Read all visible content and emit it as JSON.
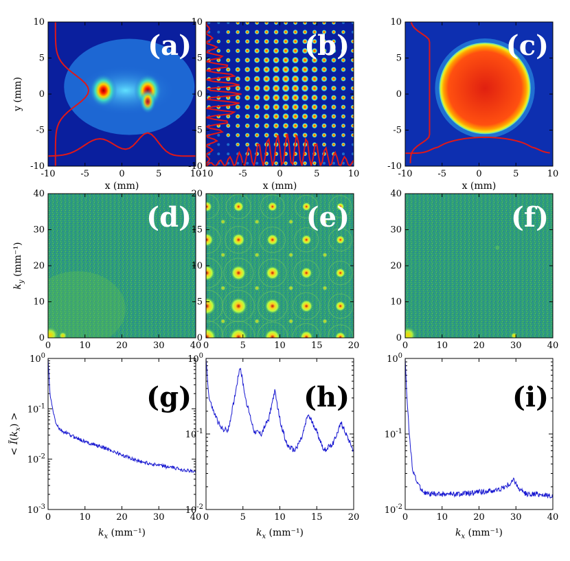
{
  "figure": {
    "colors": {
      "jet_blue": "#0a1f9e",
      "jet_field": "#1f6fd8",
      "kspace_field": "#2f9e78",
      "trace_red": "#e01818",
      "line_blue": "#1515d0"
    }
  },
  "chart_data": [
    {
      "id": "a",
      "type": "heatmap",
      "panel_label": "(a)",
      "xlabel": "x (mm)",
      "ylabel": "y (mm)",
      "xlim": [
        -10,
        10
      ],
      "ylim": [
        -10,
        10
      ],
      "xticks": [
        -10,
        -5,
        0,
        5,
        10
      ],
      "yticks": [
        -10,
        -5,
        0,
        5,
        10
      ],
      "description_spots": [
        [
          -2.5,
          0.5
        ],
        [
          3.5,
          0.5
        ]
      ],
      "overlay_profiles": [
        "vertical-left",
        "horizontal-bottom"
      ]
    },
    {
      "id": "b",
      "type": "heatmap",
      "panel_label": "(b)",
      "xlabel": "x (mm)",
      "ylabel": "",
      "xlim": [
        -10,
        10
      ],
      "ylim": [
        -10,
        10
      ],
      "xticks": [
        -10,
        -5,
        0,
        5,
        10
      ],
      "yticks": [
        -10,
        -5,
        0,
        5,
        10
      ],
      "lattice_pitch_mm": 1.3,
      "overlay_profiles": [
        "vertical-left",
        "horizontal-bottom"
      ]
    },
    {
      "id": "c",
      "type": "heatmap",
      "panel_label": "(c)",
      "xlabel": "x (mm)",
      "ylabel": "",
      "xlim": [
        -10,
        10
      ],
      "ylim": [
        -10,
        10
      ],
      "xticks": [
        -10,
        -5,
        0,
        5,
        10
      ],
      "yticks": [
        -10,
        -5,
        0,
        5,
        10
      ],
      "disc_center": [
        0.8,
        0.8
      ],
      "disc_radius_mm": 6.2,
      "overlay_profiles": [
        "vertical-left",
        "horizontal-bottom"
      ]
    },
    {
      "id": "d",
      "type": "heatmap",
      "panel_label": "(d)",
      "xlabel": "",
      "ylabel": "k_y (mm⁻¹)",
      "xlim": [
        0,
        40
      ],
      "ylim": [
        0,
        40
      ],
      "xticks": [
        0,
        10,
        20,
        30,
        40
      ],
      "yticks": [
        0,
        10,
        20,
        30,
        40
      ]
    },
    {
      "id": "e",
      "type": "heatmap",
      "panel_label": "(e)",
      "xlabel": "",
      "ylabel": "",
      "xlim": [
        0,
        20
      ],
      "ylim": [
        0,
        20
      ],
      "xticks": [
        0,
        5,
        10,
        15,
        20
      ],
      "yticks": [
        0,
        5,
        10,
        15,
        20
      ],
      "peak_spacing": 4.6
    },
    {
      "id": "f",
      "type": "heatmap",
      "panel_label": "(f)",
      "xlabel": "",
      "ylabel": "",
      "xlim": [
        0,
        40
      ],
      "ylim": [
        0,
        40
      ],
      "xticks": [
        0,
        10,
        20,
        30,
        40
      ],
      "yticks": [
        0,
        10,
        20,
        30,
        40
      ]
    },
    {
      "id": "g",
      "type": "line",
      "panel_label": "(g)",
      "xlabel": "k_x (mm⁻¹)",
      "ylabel": "< Ĩ(k_x) >",
      "xlim": [
        0,
        40
      ],
      "ylim": [
        0.001,
        1
      ],
      "yscale": "log",
      "xticks": [
        0,
        10,
        20,
        30,
        40
      ],
      "yticks": [
        "10^0",
        "10^-1",
        "10^-2",
        "10^-3"
      ],
      "x": [
        0,
        0.5,
        1,
        2,
        3,
        4,
        5,
        6,
        8,
        10,
        12,
        15,
        18,
        20,
        25,
        30,
        35,
        40
      ],
      "y": [
        1.0,
        0.2,
        0.12,
        0.055,
        0.04,
        0.035,
        0.033,
        0.03,
        0.026,
        0.022,
        0.02,
        0.017,
        0.014,
        0.012,
        0.009,
        0.0075,
        0.0065,
        0.0055
      ]
    },
    {
      "id": "h",
      "type": "line",
      "panel_label": "(h)",
      "xlabel": "k_x (mm⁻¹)",
      "ylabel": "",
      "xlim": [
        0,
        20
      ],
      "ylim": [
        0.01,
        1
      ],
      "yscale": "log",
      "xticks": [
        0,
        5,
        10,
        15,
        20
      ],
      "yticks": [
        "10^0",
        "10^-1",
        "10^-2"
      ],
      "x": [
        0,
        0.4,
        1,
        2,
        3,
        3.8,
        4.6,
        5.4,
        6.5,
        7.5,
        8.5,
        9.3,
        10.1,
        11,
        12,
        13,
        13.8,
        14.8,
        16,
        17.2,
        18.3,
        19.2,
        20
      ],
      "y": [
        1.0,
        0.3,
        0.2,
        0.12,
        0.11,
        0.28,
        0.8,
        0.28,
        0.11,
        0.1,
        0.16,
        0.37,
        0.14,
        0.07,
        0.06,
        0.09,
        0.18,
        0.12,
        0.06,
        0.075,
        0.14,
        0.09,
        0.06
      ]
    },
    {
      "id": "i",
      "type": "line",
      "panel_label": "(i)",
      "xlabel": "k_x (mm⁻¹)",
      "ylabel": "",
      "xlim": [
        0,
        40
      ],
      "ylim": [
        0.01,
        1
      ],
      "yscale": "log",
      "xticks": [
        0,
        10,
        20,
        30,
        40
      ],
      "yticks": [
        "10^0",
        "10^-1",
        "10^-2"
      ],
      "x": [
        0,
        0.5,
        1,
        1.5,
        2,
        3,
        4,
        5,
        6,
        8,
        10,
        15,
        20,
        25,
        28,
        29.5,
        31,
        33,
        36,
        40
      ],
      "y": [
        1.0,
        0.3,
        0.12,
        0.06,
        0.035,
        0.024,
        0.02,
        0.017,
        0.016,
        0.016,
        0.016,
        0.016,
        0.017,
        0.018,
        0.021,
        0.025,
        0.018,
        0.016,
        0.016,
        0.015
      ]
    }
  ]
}
